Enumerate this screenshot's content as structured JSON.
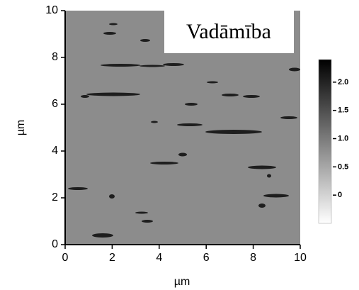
{
  "chart_data": {
    "type": "image",
    "annotation": "Vadāmība",
    "xlabel": "µm",
    "ylabel": "µm",
    "xlim": [
      0,
      10
    ],
    "ylim": [
      0,
      10
    ],
    "xticks": [
      0,
      2,
      4,
      6,
      8,
      10
    ],
    "yticks": [
      0,
      2,
      4,
      6,
      8,
      10
    ],
    "colorbar": {
      "clim": [
        -0.5,
        2.4
      ],
      "ticks": [
        0,
        0.5,
        {
          "value": 1,
          "label": "1.0"
        },
        1.5,
        {
          "value": 2,
          "label": "2.0"
        }
      ]
    }
  }
}
